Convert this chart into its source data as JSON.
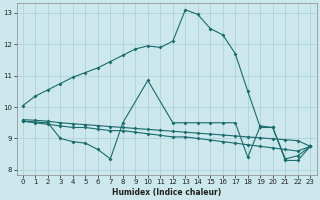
{
  "xlabel": "Humidex (Indice chaleur)",
  "bg_color": "#cce8ec",
  "grid_color": "#aacdd4",
  "line_color": "#1a6b6b",
  "xlim": [
    -0.5,
    23.5
  ],
  "ylim": [
    7.85,
    13.3
  ],
  "xticks": [
    0,
    1,
    2,
    3,
    4,
    5,
    6,
    7,
    8,
    9,
    10,
    11,
    12,
    13,
    14,
    15,
    16,
    17,
    18,
    19,
    20,
    21,
    22,
    23
  ],
  "yticks": [
    8,
    9,
    10,
    11,
    12,
    13
  ],
  "line1_x": [
    0,
    1,
    2,
    3,
    4,
    5,
    6,
    7,
    8,
    9,
    10,
    11,
    12,
    13,
    14,
    15,
    16,
    17,
    18,
    19,
    20,
    21,
    22,
    23
  ],
  "line1_y": [
    10.05,
    10.35,
    10.55,
    10.75,
    10.95,
    11.1,
    11.25,
    11.45,
    11.65,
    11.85,
    11.95,
    11.9,
    12.1,
    13.1,
    12.95,
    12.5,
    12.3,
    11.7,
    10.5,
    9.35,
    9.35,
    8.35,
    8.45,
    8.75
  ],
  "line2_x": [
    0,
    2,
    3,
    4,
    5,
    6,
    7,
    8,
    10,
    12,
    13,
    14,
    15,
    16,
    17,
    18,
    19,
    20,
    21,
    22,
    23
  ],
  "line2_y": [
    9.55,
    9.5,
    9.0,
    8.9,
    8.85,
    8.65,
    8.35,
    9.5,
    10.85,
    9.5,
    9.5,
    9.5,
    9.5,
    9.5,
    9.5,
    8.4,
    9.4,
    9.35,
    8.3,
    8.3,
    8.75
  ],
  "line3_x": [
    0,
    1,
    2,
    3,
    4,
    5,
    6,
    7,
    8,
    9,
    10,
    11,
    12,
    13,
    14,
    15,
    16,
    17,
    18,
    19,
    20,
    21,
    22,
    23
  ],
  "line3_y": [
    9.55,
    9.5,
    9.45,
    9.4,
    9.35,
    9.35,
    9.3,
    9.25,
    9.25,
    9.2,
    9.15,
    9.1,
    9.05,
    9.05,
    9.0,
    8.95,
    8.9,
    8.85,
    8.8,
    8.75,
    8.7,
    8.65,
    8.6,
    8.75
  ],
  "line4_x": [
    0,
    1,
    2,
    3,
    4,
    5,
    6,
    7,
    8,
    9,
    10,
    11,
    12,
    13,
    14,
    15,
    16,
    17,
    18,
    19,
    20,
    21,
    22,
    23
  ],
  "line4_y": [
    9.6,
    9.58,
    9.55,
    9.5,
    9.47,
    9.44,
    9.41,
    9.38,
    9.35,
    9.32,
    9.29,
    9.26,
    9.23,
    9.2,
    9.17,
    9.14,
    9.11,
    9.08,
    9.05,
    9.02,
    8.99,
    8.96,
    8.93,
    8.75
  ]
}
